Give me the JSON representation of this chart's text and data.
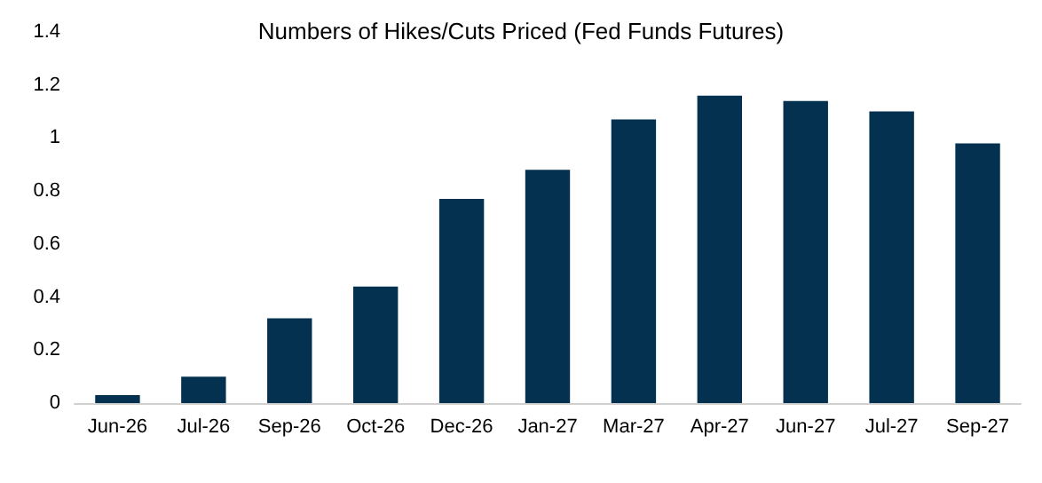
{
  "chart_data": {
    "type": "bar",
    "title": "Numbers of Hikes/Cuts Priced (Fed Funds Futures)",
    "categories": [
      "Jun-26",
      "Jul-26",
      "Sep-26",
      "Oct-26",
      "Dec-26",
      "Jan-27",
      "Mar-27",
      "Apr-27",
      "Jun-27",
      "Jul-27",
      "Sep-27"
    ],
    "values": [
      0.03,
      0.1,
      0.32,
      0.44,
      0.77,
      0.88,
      1.07,
      1.16,
      1.14,
      1.1,
      0.98
    ],
    "color": "#03314f",
    "ylim": [
      0,
      1.4
    ],
    "yticks": [
      0,
      0.2,
      0.4,
      0.6,
      0.8,
      1,
      1.2,
      1.4
    ],
    "grid": false
  }
}
